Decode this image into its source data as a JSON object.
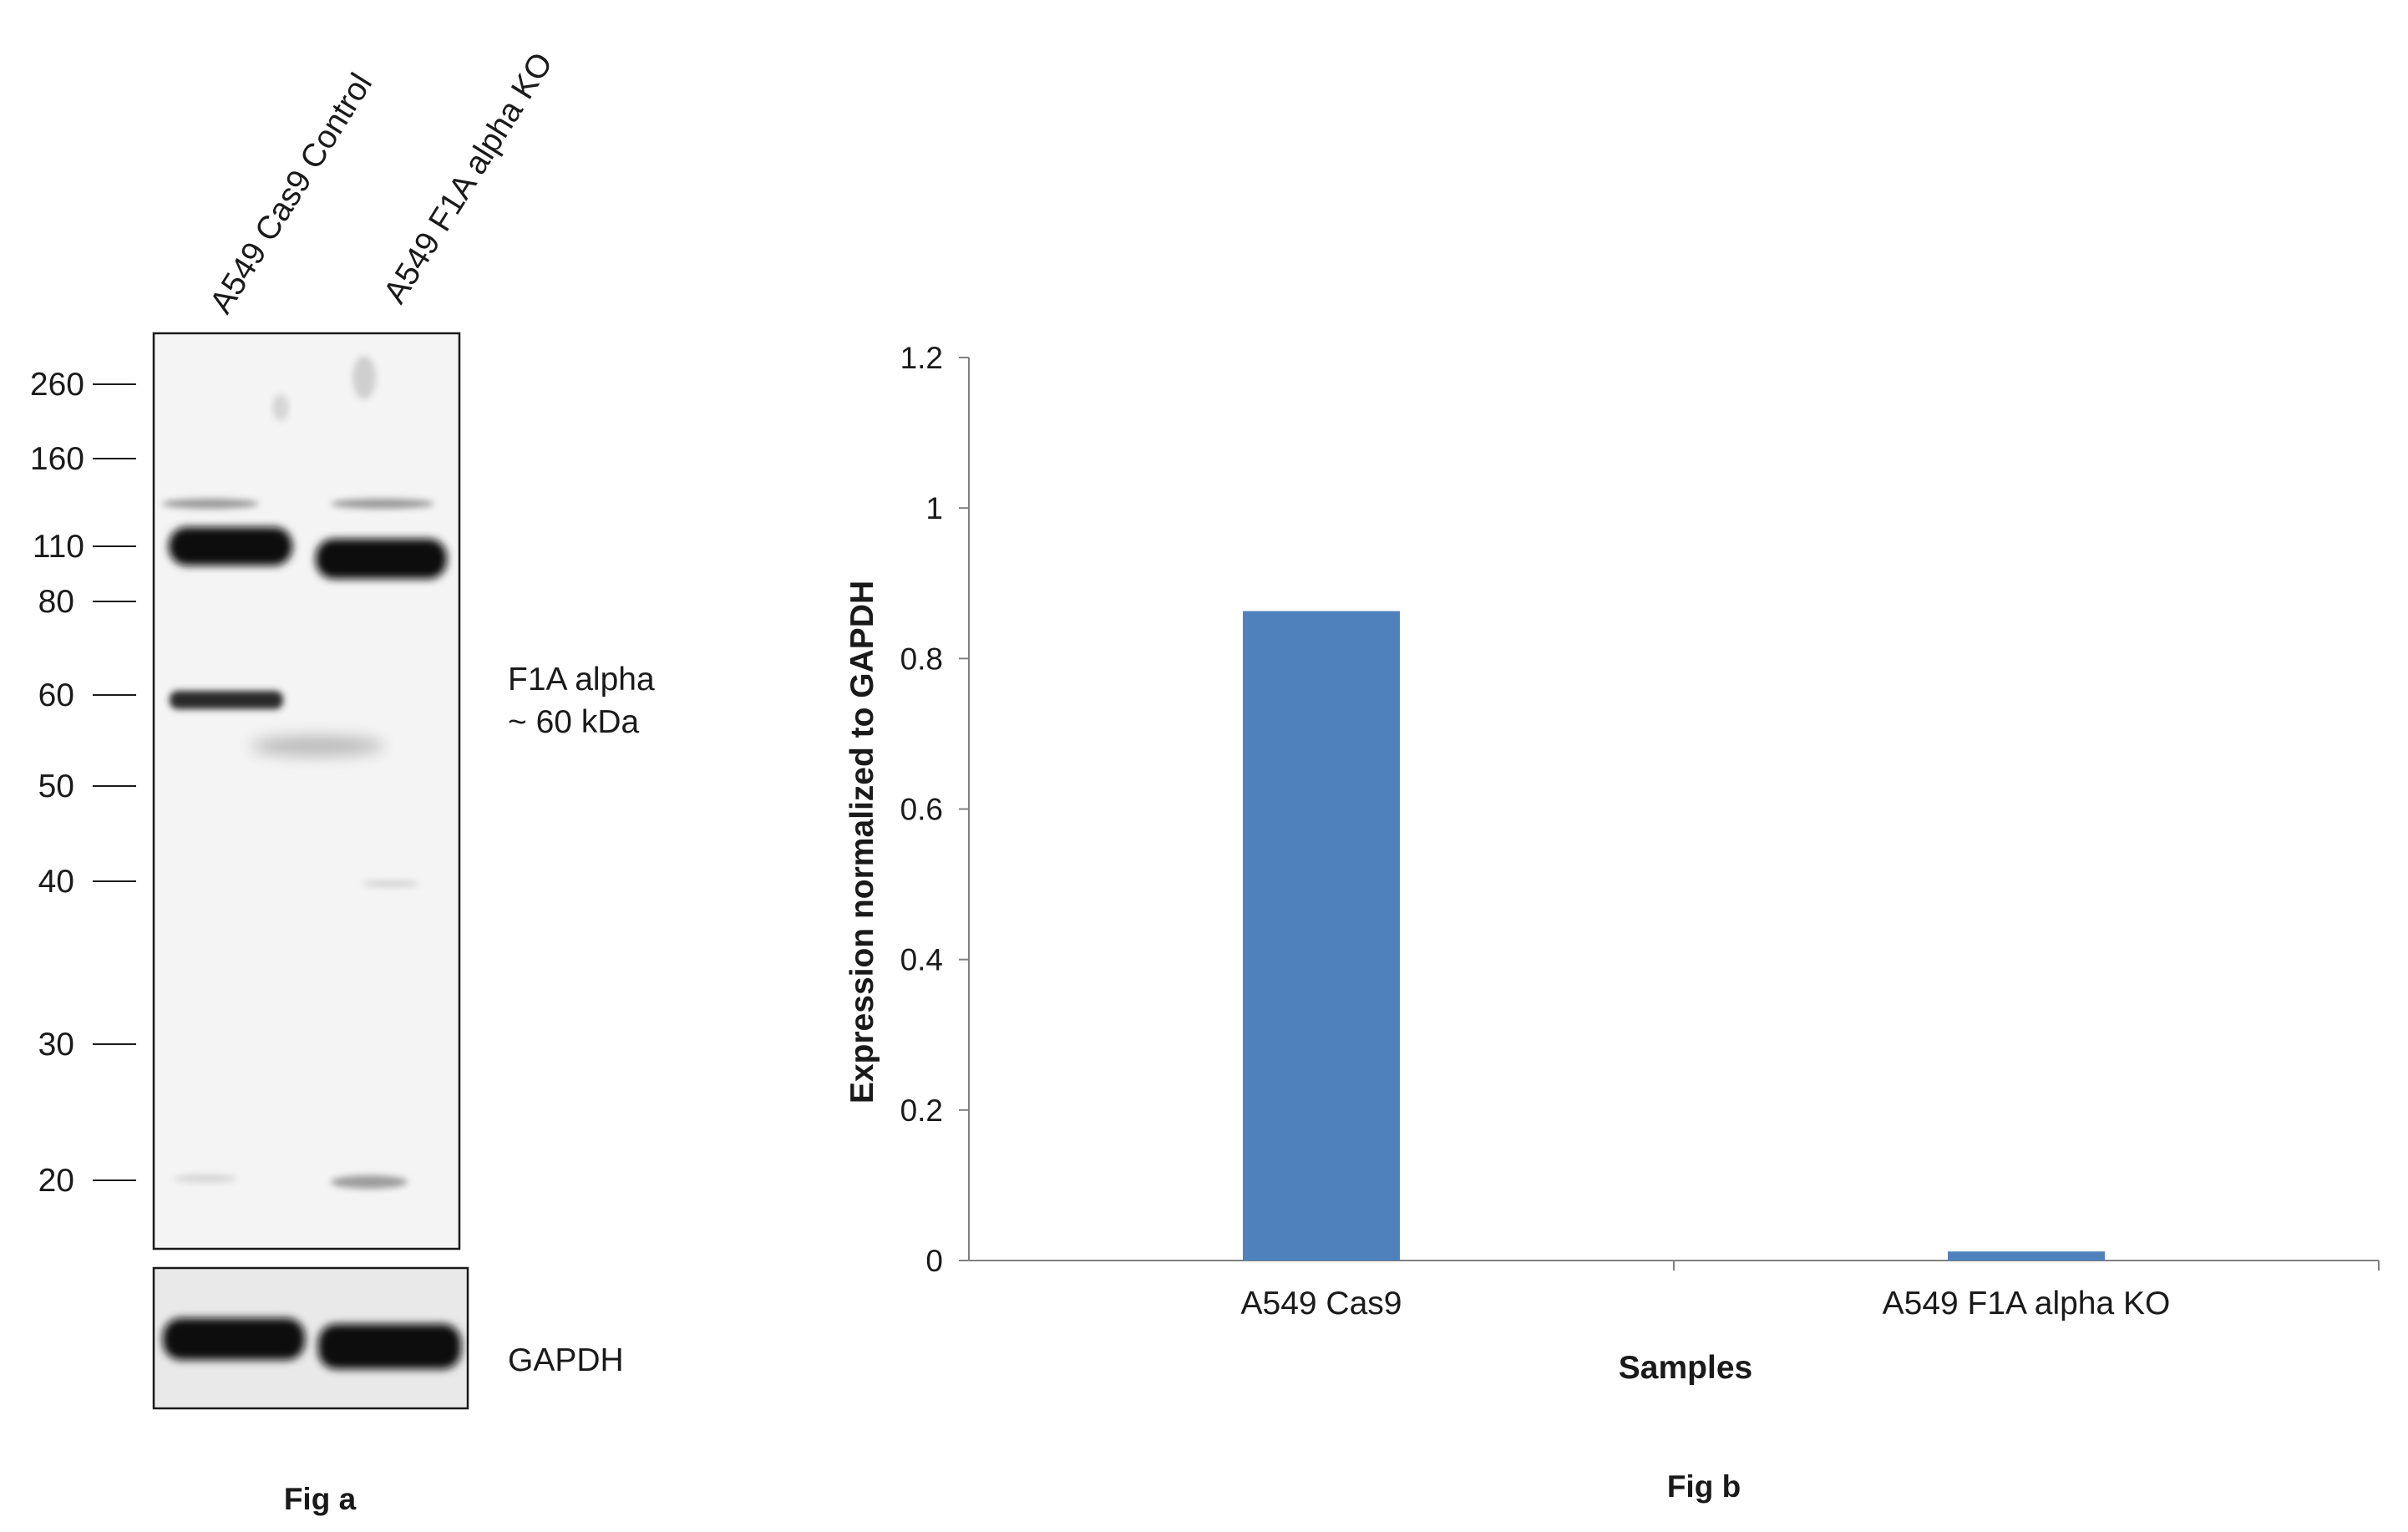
{
  "figure_a": {
    "lanes": [
      "A549 Cas9 Control",
      "A549 F1A alpha KO"
    ],
    "markers": [
      "260",
      "160",
      "110",
      "80",
      "60",
      "50",
      "40",
      "30",
      "20"
    ],
    "band_label_line1": "F1A alpha",
    "band_label_line2": "~ 60 kDa",
    "loading_control_label": "GAPDH",
    "caption": "Fig a"
  },
  "chart_data": {
    "type": "bar",
    "categories": [
      "A549 Cas9",
      "A549 F1A alpha KO"
    ],
    "values": [
      0.863,
      0.012
    ],
    "ylabel": "Expression  normalized to GAPDH",
    "xlabel": "Samples",
    "ylim": [
      0,
      1.2
    ],
    "yticks": [
      "0",
      "0.2",
      "0.4",
      "0.6",
      "0.8",
      "1",
      "1.2"
    ],
    "grid": false,
    "bar_color": "#4f81bd",
    "caption": "Fig b"
  }
}
